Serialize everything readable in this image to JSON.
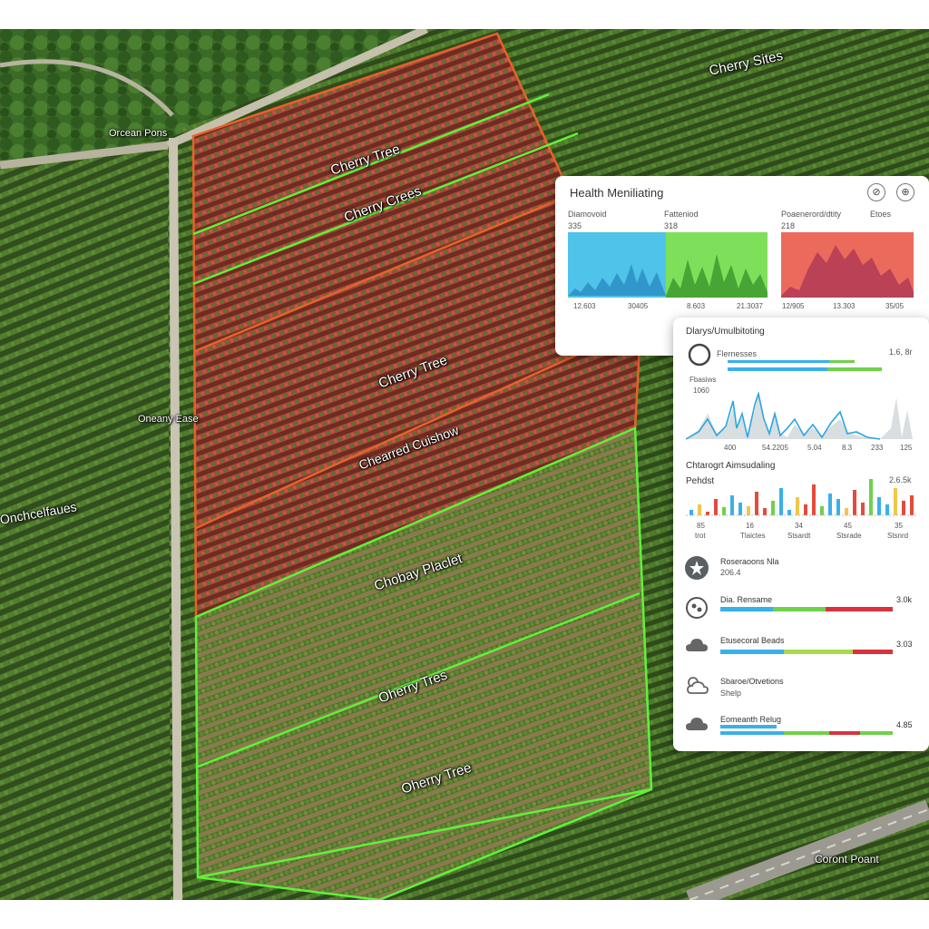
{
  "map_labels": {
    "cherry_sites": "Cherry Sites",
    "road_top": "Orcean Pons",
    "road_mid": "Oneany Ease",
    "left_edge": "Onchcelfaues",
    "block1_a": "Cherry Tree",
    "block1_b": "Cherry Crees",
    "block2_a": "Cherry Tree",
    "block2_b": "Chearred Cuishow",
    "block3_a": "Chobay Placlet",
    "block3_b": "Oherry Tres",
    "block3_c": "Oherry Tree",
    "road_bottom": "Coront Poant"
  },
  "health_panel": {
    "title": "Health Meniliating",
    "charts": [
      {
        "label": "Diamovoid",
        "value": "335",
        "ticks": [
          "12.603",
          "30405"
        ]
      },
      {
        "label": "Fatteniod",
        "value": "318",
        "ticks": [
          "8.603",
          "21.3037"
        ]
      },
      {
        "label": "Poaenerord/dtity",
        "value": "218",
        "ticks": [
          "12/905",
          "13.303"
        ]
      }
    ],
    "extra_label": "Etoes",
    "extra_tick": "35/05"
  },
  "detail_panel": {
    "section1_title": "Dlarys/Umulbitoting",
    "section1_row_label": "Flernesses",
    "section1_row_value": "1.6, 8r",
    "section1_sub_a": "Fbasiws",
    "section1_sub_b": "1060",
    "section1_ticks": [
      "400",
      "54.2205",
      "5.04",
      "8.3",
      "233",
      "125"
    ],
    "section2_title": "Chtarogrt Aimsudaling",
    "section2_label": "Pehdst",
    "section2_value": "2.6.5k",
    "section2_ticks": [
      "85",
      "16",
      "34",
      "45",
      "35"
    ],
    "section2_tick_sub": [
      "trot",
      "Tlaictes",
      "Stsardt",
      "Stsrade",
      "Stsnrd"
    ],
    "rows": [
      {
        "name": "Roseraoons Nla",
        "sub": "206.4",
        "value": "",
        "icon": "leaf-star-icon"
      },
      {
        "name": "Dia. Rensame",
        "sub": "",
        "value": "3.0k",
        "icon": "bug-icon"
      },
      {
        "name": "Etusecoral Beads",
        "sub": "",
        "value": "3.03",
        "icon": "cloud-icon"
      },
      {
        "name": "Sbaroe/Otvetions",
        "sub": "Shelp",
        "value": "",
        "icon": "sun-cloud-icon"
      },
      {
        "name": "Eomeanth Relug",
        "sub": "",
        "value": "4.85",
        "icon": "cloud-icon"
      }
    ]
  },
  "colors": {
    "alert_outline": "#e8622a",
    "healthy_outline": "#5ff23a",
    "stress_fill": "#a63a30",
    "chart_blue": "#3ab0ea",
    "chart_green": "#6fd24a",
    "chart_red": "#e24b3e"
  }
}
